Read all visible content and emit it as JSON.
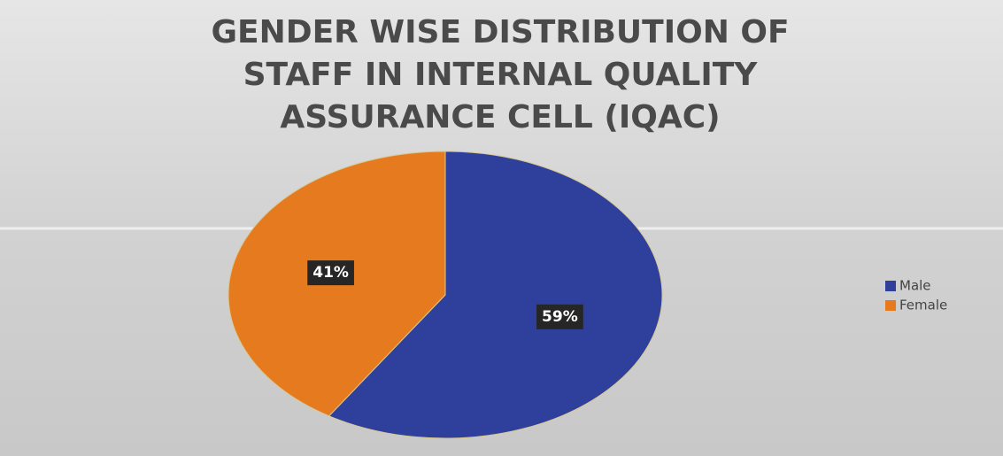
{
  "chart_data": {
    "type": "pie",
    "title": [
      "GENDER WISE DISTRIBUTION OF",
      "STAFF IN INTERNAL QUALITY",
      "ASSURANCE CELL (IQAC)"
    ],
    "categories": [
      "Male",
      "Female"
    ],
    "values": [
      59,
      41
    ],
    "value_labels": [
      "59%",
      "41%"
    ],
    "colors": [
      "#2f3f9c",
      "#e67a1f"
    ],
    "legend": "right"
  }
}
